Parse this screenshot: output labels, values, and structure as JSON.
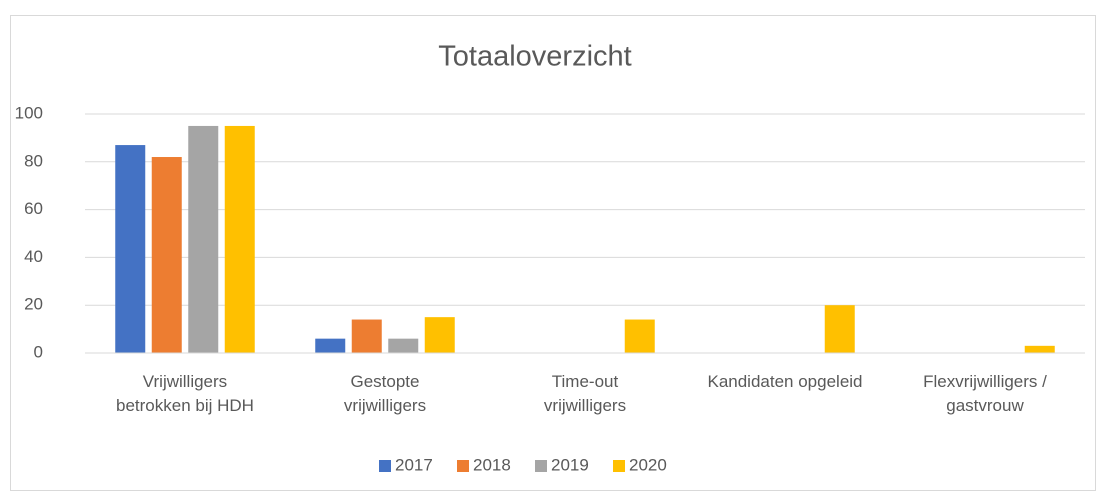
{
  "chart_data": {
    "type": "bar",
    "title": "Totaaloverzicht",
    "categories": [
      [
        "Vrijwilligers",
        "betrokken bij HDH"
      ],
      [
        "Gestopte",
        "vrijwilligers"
      ],
      [
        "Time-out",
        "vrijwilligers"
      ],
      [
        "Kandidaten opgeleid"
      ],
      [
        "Flexvrijwilligers /",
        "gastvrouw"
      ]
    ],
    "series": [
      {
        "name": "2017",
        "color": "#4472c4",
        "values": [
          87,
          6,
          0,
          0,
          0
        ]
      },
      {
        "name": "2018",
        "color": "#ed7d31",
        "values": [
          82,
          14,
          0,
          0,
          0
        ]
      },
      {
        "name": "2019",
        "color": "#a5a5a5",
        "values": [
          95,
          6,
          0,
          0,
          0
        ]
      },
      {
        "name": "2020",
        "color": "#ffc000",
        "values": [
          95,
          15,
          14,
          20,
          3
        ]
      }
    ],
    "ylim": [
      0,
      100
    ],
    "yticks": [
      0,
      20,
      40,
      60,
      80,
      100
    ],
    "grid": true,
    "legend": "bottom"
  }
}
